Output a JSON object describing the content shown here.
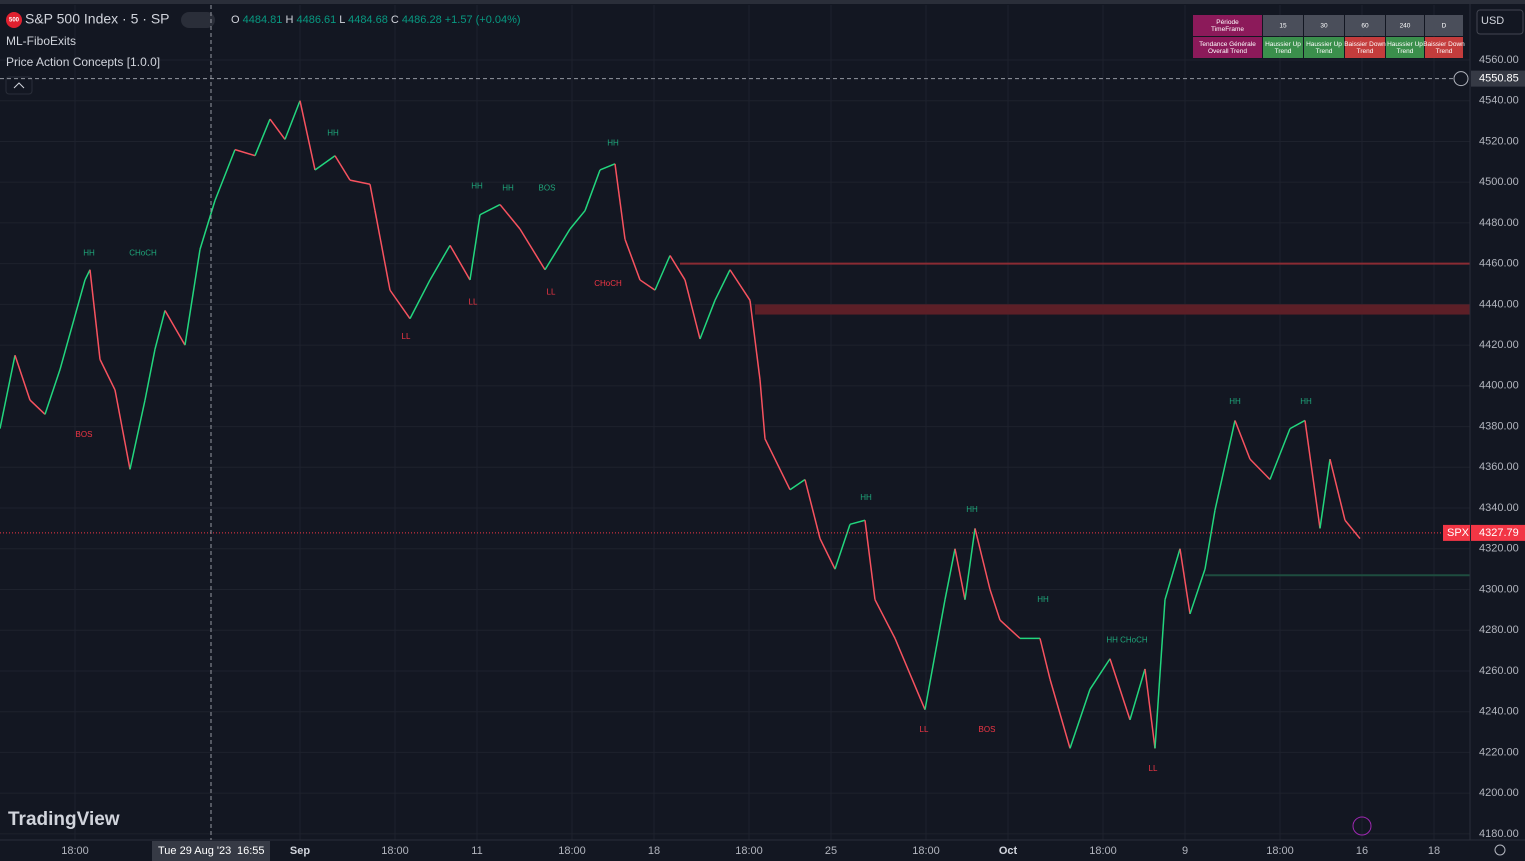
{
  "header": {
    "logo": "500",
    "symbol": "S&P 500 Index · 5 · SP",
    "ohlc": [
      {
        "label": "O",
        "value": "4484.81"
      },
      {
        "label": "H",
        "value": "4486.61"
      },
      {
        "label": "L",
        "value": "4484.68"
      },
      {
        "label": "C",
        "value": "4486.28"
      }
    ],
    "change": "+1.57 (+0.04%)",
    "currency": "USD"
  },
  "indicators": [
    "ML-FiboExits",
    "Price Action Concepts [1.0.0]"
  ],
  "brand": "TradingView",
  "table": {
    "header": [
      "Période TimeFrame",
      "15",
      "30",
      "60",
      "240",
      "D"
    ],
    "row": [
      "Tendance Générale Overall Trend",
      "Haussier Up Trend",
      "Haussier Up Trend",
      "Baissier Down Trend",
      "Haussier Up Trend",
      "Baissier Down Trend"
    ]
  },
  "chart_data": {
    "type": "line",
    "title": "S&P 500 Index · 5 · SP",
    "x": [
      0,
      15,
      30,
      45,
      60,
      85,
      90,
      100,
      115,
      130,
      145,
      155,
      165,
      185,
      200,
      215,
      235,
      255,
      270,
      285,
      300,
      315,
      335,
      350,
      370,
      375,
      390,
      410,
      430,
      450,
      470,
      480,
      500,
      520,
      545,
      570,
      585,
      600,
      615,
      625,
      640,
      655,
      670,
      685,
      700,
      715,
      730,
      750,
      760,
      765,
      790,
      805,
      820,
      835,
      850,
      865,
      875,
      895,
      925,
      945,
      955,
      965,
      975,
      990,
      1000,
      1020,
      1040,
      1050,
      1070,
      1090,
      1110,
      1130,
      1145,
      1155,
      1165,
      1180,
      1190,
      1205,
      1215,
      1235,
      1250,
      1270,
      1290,
      1305,
      1320,
      1330,
      1345,
      1360
    ],
    "series": [
      {
        "name": "S&P 500 Index",
        "up_color": "#22d67e",
        "down_color": "#f7525f",
        "values": [
          4379,
          4415,
          4393,
          4386,
          4408,
          4452,
          4457,
          4413,
          4398,
          4359,
          4393,
          4418,
          4437,
          4420,
          4467,
          4491,
          4516,
          4513,
          4531,
          4521,
          4540,
          4506,
          4513,
          4501,
          4499,
          4486,
          4447,
          4433,
          4452,
          4469,
          4452,
          4484,
          4489,
          4477,
          4457,
          4477,
          4486,
          4506,
          4509,
          4472,
          4452,
          4447,
          4464,
          4452,
          4423,
          4442,
          4457,
          4442,
          4403,
          4374,
          4349,
          4354,
          4325,
          4310,
          4332,
          4334,
          4295,
          4276,
          4241,
          4295,
          4320,
          4295,
          4330,
          4300,
          4285,
          4276,
          4276,
          4256,
          4222,
          4251,
          4266,
          4236,
          4261,
          4222,
          4295,
          4320,
          4288,
          4310,
          4339,
          4383,
          4364,
          4354,
          4379,
          4383,
          4330,
          4364,
          4334,
          4325
        ]
      }
    ],
    "xlim": [
      0,
      1470
    ],
    "ylim": [
      4177,
      4587
    ],
    "xticks": [
      {
        "value": 75,
        "label": "18:00"
      },
      {
        "value": 300,
        "label": "Sep"
      },
      {
        "value": 395,
        "label": "18:00"
      },
      {
        "value": 477,
        "label": "11"
      },
      {
        "value": 572,
        "label": "18:00"
      },
      {
        "value": 654,
        "label": "18"
      },
      {
        "value": 749,
        "label": "18:00"
      },
      {
        "value": 831,
        "label": "25"
      },
      {
        "value": 926,
        "label": "18:00"
      },
      {
        "value": 1008,
        "label": "Oct"
      },
      {
        "value": 1103,
        "label": "18:00"
      },
      {
        "value": 1185,
        "label": "9"
      },
      {
        "value": 1280,
        "label": "18:00"
      },
      {
        "value": 1362,
        "label": "16"
      },
      {
        "value": 1434,
        "label": "18"
      }
    ],
    "yticks": [
      {
        "value": 4180,
        "label": "4180.00"
      },
      {
        "value": 4200,
        "label": "4200.00"
      },
      {
        "value": 4220,
        "label": "4220.00"
      },
      {
        "value": 4240,
        "label": "4240.00"
      },
      {
        "value": 4260,
        "label": "4260.00"
      },
      {
        "value": 4280,
        "label": "4280.00"
      },
      {
        "value": 4300,
        "label": "4300.00"
      },
      {
        "value": 4320,
        "label": "4320.00"
      },
      {
        "value": 4340,
        "label": "4340.00"
      },
      {
        "value": 4360,
        "label": "4360.00"
      },
      {
        "value": 4380,
        "label": "4380.00"
      },
      {
        "value": 4400,
        "label": "4400.00"
      },
      {
        "value": 4420,
        "label": "4420.00"
      },
      {
        "value": 4440,
        "label": "4440.00"
      },
      {
        "value": 4460,
        "label": "4460.00"
      },
      {
        "value": 4480,
        "label": "4480.00"
      },
      {
        "value": 4500,
        "label": "4500.00"
      },
      {
        "value": 4520,
        "label": "4520.00"
      },
      {
        "value": 4540,
        "label": "4540.00"
      },
      {
        "value": 4560,
        "label": "4560.00"
      }
    ],
    "grid": true,
    "last_price": 4327.79,
    "last_label": "SPX",
    "crosshair": {
      "x": 211,
      "y": 4550.85,
      "date": "Tue 29 Aug '23",
      "time": "16:55"
    },
    "levels": [
      {
        "x": [
          680,
          1470
        ],
        "y": 4460,
        "color": "#8a2b33"
      },
      {
        "x": [
          1205,
          1470
        ],
        "y": 4307,
        "color": "#1e4d3f"
      }
    ],
    "zone": {
      "x": [
        755,
        1470
      ],
      "y": [
        4435,
        4440
      ],
      "color": "#5c1f27"
    },
    "annotations": [
      {
        "text": "HH",
        "x": 89,
        "y": 4465,
        "color": "#1fa67a"
      },
      {
        "text": "CHoCH",
        "x": 143,
        "y": 4465,
        "color": "#1fa67a"
      },
      {
        "text": "BOS",
        "x": 84,
        "y": 4376,
        "color": "#f23645"
      },
      {
        "text": "HH",
        "x": 333,
        "y": 4524,
        "color": "#1fa67a"
      },
      {
        "text": "HH",
        "x": 477,
        "y": 4498,
        "color": "#1fa67a"
      },
      {
        "text": "HH",
        "x": 508,
        "y": 4497,
        "color": "#1fa67a"
      },
      {
        "text": "BOS",
        "x": 547,
        "y": 4497,
        "color": "#1fa67a"
      },
      {
        "text": "LL",
        "x": 473,
        "y": 4441,
        "color": "#f23645"
      },
      {
        "text": "LL",
        "x": 406,
        "y": 4424,
        "color": "#f23645"
      },
      {
        "text": "LL",
        "x": 551,
        "y": 4446,
        "color": "#f23645"
      },
      {
        "text": "CHoCH",
        "x": 608,
        "y": 4450,
        "color": "#f23645"
      },
      {
        "text": "HH",
        "x": 613,
        "y": 4519,
        "color": "#1fa67a"
      },
      {
        "text": "HH",
        "x": 866,
        "y": 4345,
        "color": "#1fa67a"
      },
      {
        "text": "HH",
        "x": 972,
        "y": 4339,
        "color": "#1fa67a"
      },
      {
        "text": "HH",
        "x": 1043,
        "y": 4295,
        "color": "#1fa67a"
      },
      {
        "text": "HH CHoCH",
        "x": 1127,
        "y": 4275,
        "color": "#1fa67a"
      },
      {
        "text": "LL",
        "x": 924,
        "y": 4231,
        "color": "#f23645"
      },
      {
        "text": "BOS",
        "x": 987,
        "y": 4231,
        "color": "#f23645"
      },
      {
        "text": "LL",
        "x": 1153,
        "y": 4212,
        "color": "#f23645"
      },
      {
        "text": "HH",
        "x": 1235,
        "y": 4392,
        "color": "#1fa67a"
      },
      {
        "text": "HH",
        "x": 1306,
        "y": 4392,
        "color": "#1fa67a"
      }
    ]
  }
}
